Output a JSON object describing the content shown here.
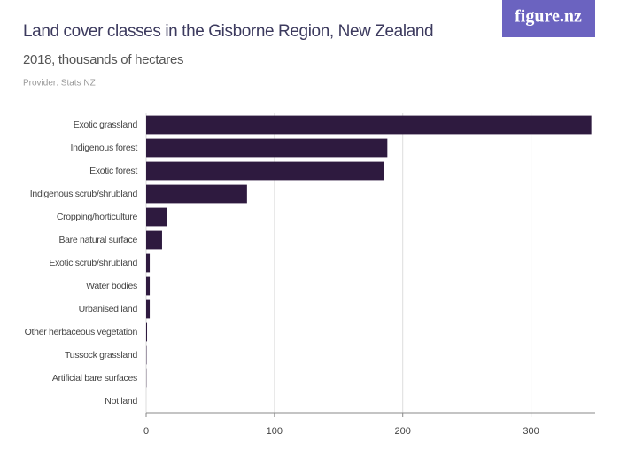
{
  "logo": "figure.nz",
  "chart_data": {
    "type": "hbar",
    "title": "Land cover classes in the Gisborne Region, New Zealand",
    "subtitle": "2018, thousands of hectares",
    "source": "Provider: Stats NZ",
    "categories": [
      "Exotic grassland",
      "Indigenous forest",
      "Exotic forest",
      "Indigenous scrub/shrubland",
      "Cropping/horticulture",
      "Bare natural surface",
      "Exotic scrub/shrubland",
      "Water bodies",
      "Urbanised land",
      "Other herbaceous vegetation",
      "Tussock grassland",
      "Artificial bare surfaces",
      "Not land"
    ],
    "values": [
      347,
      188,
      185.5,
      78.6,
      16.5,
      12.4,
      2.8,
      2.8,
      2.8,
      0.7,
      0.3,
      0.2,
      0
    ],
    "color": "#2e1a3f",
    "xlim": [
      0,
      350
    ],
    "xticks": [
      0,
      100,
      200,
      300
    ],
    "grid": true
  }
}
